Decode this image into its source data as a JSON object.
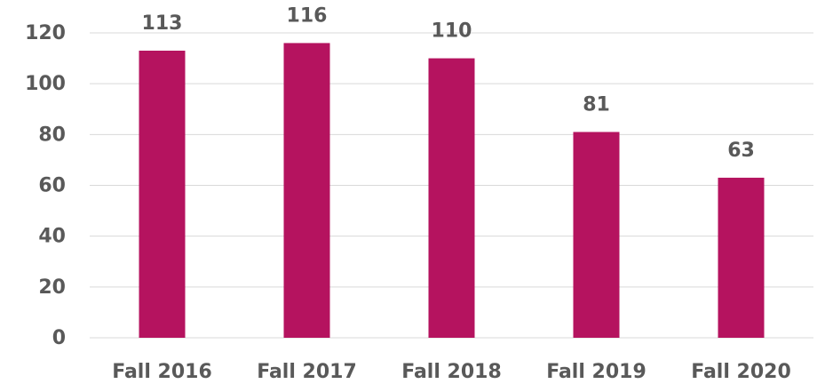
{
  "chart_data": {
    "type": "bar",
    "categories": [
      "Fall 2016",
      "Fall 2017",
      "Fall 2018",
      "Fall 2019",
      "Fall 2020"
    ],
    "values": [
      113,
      116,
      110,
      81,
      63
    ],
    "color": "#b5135f",
    "ylim": [
      0,
      120
    ],
    "yticks": [
      0,
      20,
      40,
      60,
      80,
      100,
      120
    ],
    "grid": true
  }
}
